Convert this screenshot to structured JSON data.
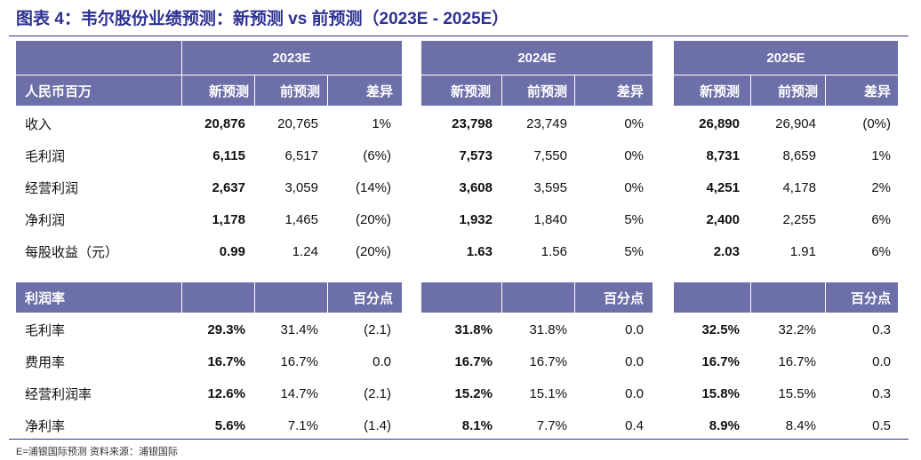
{
  "title": "图表 4：韦尔股份业绩预测：新预测 vs 前预测（2023E - 2025E）",
  "years": [
    "2023E",
    "2024E",
    "2025E"
  ],
  "header1": {
    "label": "人民币百万",
    "cols": [
      "新预测",
      "前预测",
      "差异"
    ]
  },
  "section1": [
    {
      "label": "收入",
      "v": [
        "20,876",
        "20,765",
        "1%",
        "23,798",
        "23,749",
        "0%",
        "26,890",
        "26,904",
        "(0%)"
      ]
    },
    {
      "label": "毛利润",
      "v": [
        "6,115",
        "6,517",
        "(6%)",
        "7,573",
        "7,550",
        "0%",
        "8,731",
        "8,659",
        "1%"
      ]
    },
    {
      "label": "经营利润",
      "v": [
        "2,637",
        "3,059",
        "(14%)",
        "3,608",
        "3,595",
        "0%",
        "4,251",
        "4,178",
        "2%"
      ]
    },
    {
      "label": "净利润",
      "v": [
        "1,178",
        "1,465",
        "(20%)",
        "1,932",
        "1,840",
        "5%",
        "2,400",
        "2,255",
        "6%"
      ]
    },
    {
      "label": "每股收益（元）",
      "v": [
        "0.99",
        "1.24",
        "(20%)",
        "1.63",
        "1.56",
        "5%",
        "2.03",
        "1.91",
        "6%"
      ]
    }
  ],
  "header2": {
    "label": "利润率",
    "diff": "百分点"
  },
  "section2": [
    {
      "label": "毛利率",
      "v": [
        "29.3%",
        "31.4%",
        "(2.1)",
        "31.8%",
        "31.8%",
        "0.0",
        "32.5%",
        "32.2%",
        "0.3"
      ]
    },
    {
      "label": "费用率",
      "v": [
        "16.7%",
        "16.7%",
        "0.0",
        "16.7%",
        "16.7%",
        "0.0",
        "16.7%",
        "16.7%",
        "0.0"
      ]
    },
    {
      "label": "经营利润率",
      "v": [
        "12.6%",
        "14.7%",
        "(2.1)",
        "15.2%",
        "15.1%",
        "0.0",
        "15.8%",
        "15.5%",
        "0.3"
      ]
    },
    {
      "label": "净利率",
      "v": [
        "5.6%",
        "7.1%",
        "(1.4)",
        "8.1%",
        "7.7%",
        "0.4",
        "8.9%",
        "8.4%",
        "0.5"
      ]
    }
  ],
  "source": "E=浦银国际预测    资料来源：浦银国际",
  "colors": {
    "header": "#6c6fa8",
    "title": "#2e3192"
  }
}
